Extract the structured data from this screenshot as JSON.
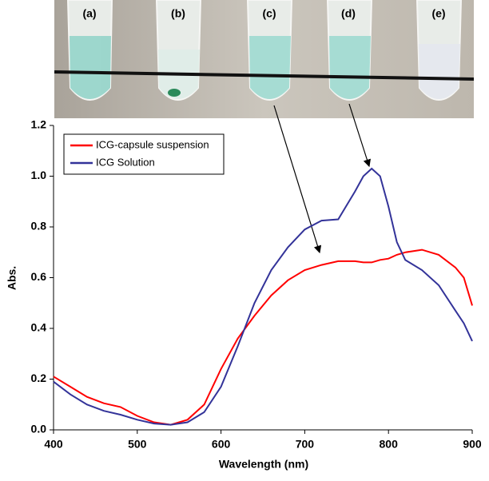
{
  "photo": {
    "labels": [
      "(a)",
      "(b)",
      "(c)",
      "(d)",
      "(e)"
    ]
  },
  "chart_data": {
    "type": "line",
    "x_label": "Wavelength (nm)",
    "y_label": "Abs.",
    "x": [
      400,
      420,
      440,
      460,
      480,
      500,
      520,
      540,
      560,
      580,
      600,
      620,
      640,
      660,
      680,
      700,
      720,
      740,
      760,
      770,
      780,
      790,
      800,
      810,
      820,
      840,
      860,
      880,
      890,
      900
    ],
    "series": [
      {
        "name": "ICG-capsule suspension",
        "color": "#ff0000",
        "values": [
          0.21,
          0.17,
          0.13,
          0.105,
          0.09,
          0.055,
          0.03,
          0.02,
          0.04,
          0.1,
          0.24,
          0.36,
          0.45,
          0.53,
          0.59,
          0.63,
          0.65,
          0.665,
          0.665,
          0.66,
          0.66,
          0.67,
          0.675,
          0.69,
          0.7,
          0.71,
          0.69,
          0.64,
          0.6,
          0.49
        ]
      },
      {
        "name": "ICG Solution",
        "color": "#333399",
        "values": [
          0.19,
          0.14,
          0.1,
          0.075,
          0.06,
          0.04,
          0.025,
          0.02,
          0.03,
          0.07,
          0.17,
          0.33,
          0.5,
          0.63,
          0.72,
          0.79,
          0.825,
          0.83,
          0.94,
          1.0,
          1.03,
          1.0,
          0.88,
          0.74,
          0.67,
          0.63,
          0.57,
          0.47,
          0.42,
          0.35
        ]
      }
    ],
    "xlim": [
      400,
      900
    ],
    "xticks": [
      400,
      500,
      600,
      700,
      800,
      900
    ],
    "ylim": [
      0,
      1.2
    ],
    "yticks": [
      {
        "value": 0,
        "label": "0.0"
      },
      0.2,
      0.4,
      0.6,
      0.8,
      {
        "value": 1,
        "label": "1.0"
      },
      1.2
    ],
    "legend": "upper left"
  }
}
